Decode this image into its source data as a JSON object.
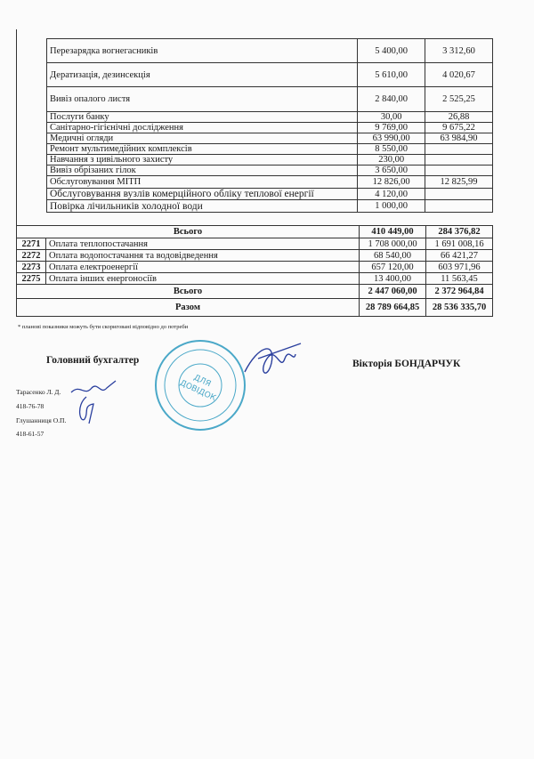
{
  "services": [
    {
      "name": "Перезарядка вогнегасників",
      "plan": "5 400,00",
      "actual": "3 312,60"
    },
    {
      "name": "Дератизація, дезинсекція",
      "plan": "5 610,00",
      "actual": "4 020,67"
    },
    {
      "name": "Вивіз опалого листя",
      "plan": "2 840,00",
      "actual": "2 525,25"
    },
    {
      "name": "Послуги банку",
      "plan": "30,00",
      "actual": "26,88"
    },
    {
      "name": "Санітарно-гігієнічні дослідження",
      "plan": "9 769,00",
      "actual": "9 675,22"
    },
    {
      "name": "Медичні огляди",
      "plan": "63 990,00",
      "actual": "63 984,90"
    },
    {
      "name": "Ремонт мультимедійних комплексів",
      "plan": "8 550,00",
      "actual": ""
    },
    {
      "name": "Навчання з цивільного захисту",
      "plan": "230,00",
      "actual": ""
    },
    {
      "name": "Вивіз обрізаних гілок",
      "plan": "3 650,00",
      "actual": ""
    },
    {
      "name": "Обслуговування МІТП",
      "plan": "12 826,00",
      "actual": "12 825,99"
    },
    {
      "name": "Обслуговування вузлів комерційного обліку теплової енергії",
      "plan": "4 120,00",
      "actual": ""
    },
    {
      "name": "Повірка лічильників холодної води",
      "plan": "1 000,00",
      "actual": ""
    }
  ],
  "services_total": {
    "label": "Всього",
    "plan": "410 449,00",
    "actual": "284 376,82"
  },
  "utilities": [
    {
      "code": "2271",
      "name": "Оплата теплопостачання",
      "plan": "1 708 000,00",
      "actual": "1 691 008,16"
    },
    {
      "code": "2272",
      "name": "Оплата водопостачання та водовідведення",
      "plan": "68 540,00",
      "actual": "66 421,27"
    },
    {
      "code": "2273",
      "name": "Оплата електроенергії",
      "plan": "657 120,00",
      "actual": "603 971,96"
    },
    {
      "code": "2275",
      "name": "Оплата інших енергоносіїв",
      "plan": "13 400,00",
      "actual": "11 563,45"
    }
  ],
  "utilities_total": {
    "label": "Всього",
    "plan": "2 447 060,00",
    "actual": "2 372 964,84"
  },
  "grand_total": {
    "label": "Разом",
    "plan": "28 789 664,85",
    "actual": "28 536 335,70"
  },
  "footnote": "* планові показники можуть бути скориговані відповідно до потреби",
  "signature": {
    "title": "Головний бухгалтер",
    "name": "Вікторія БОНДАРЧУК"
  },
  "contacts": [
    {
      "name": "Тарасенко Л. Д.",
      "phone": "418-76-78"
    },
    {
      "name": "Глушанниця О.П.",
      "phone": "418-61-57"
    }
  ],
  "stamp": {
    "center_text": "ДЛЯ ДОВІДОК",
    "color": "#4aa8c8"
  },
  "ink_color": "#2a3f9e"
}
